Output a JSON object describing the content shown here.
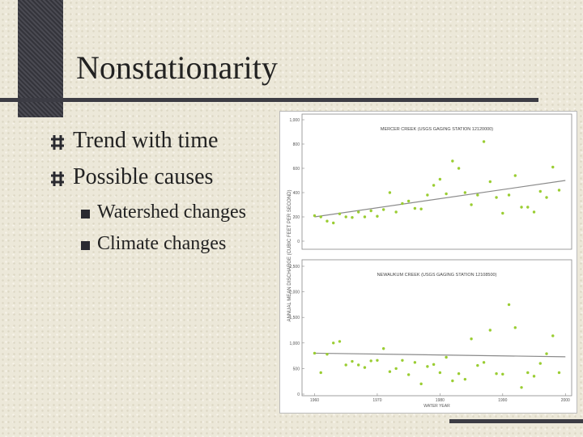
{
  "header": {
    "title": "Nonstationarity"
  },
  "bullets": [
    "Trend with time",
    "Possible causes"
  ],
  "sub_bullets": [
    "Watershed changes",
    "Climate changes"
  ],
  "chart_data": [
    {
      "type": "scatter",
      "title": "MERCER CREEK (USGS GAGING STATION 12120000)",
      "y_label": "ANNUAL MEAN DISCHARGE (CUBIC FEET PER SECOND)",
      "xlim": [
        1958,
        2001
      ],
      "ylim": [
        0,
        1000
      ],
      "yticks": [
        0,
        200,
        400,
        600,
        800,
        {
          "value": 1000,
          "label": "1,000"
        }
      ],
      "color": "#9acd32",
      "trend_color": "#8a8a8a",
      "x": [
        1960,
        1961,
        1962,
        1963,
        1964,
        1965,
        1966,
        1967,
        1968,
        1969,
        1970,
        1971,
        1972,
        1973,
        1974,
        1975,
        1976,
        1977,
        1978,
        1979,
        1980,
        1981,
        1982,
        1983,
        1984,
        1985,
        1986,
        1987,
        1988,
        1989,
        1990,
        1991,
        1992,
        1993,
        1994,
        1995,
        1996,
        1997,
        1998,
        1999
      ],
      "values": [
        210,
        200,
        165,
        150,
        225,
        200,
        195,
        240,
        200,
        250,
        205,
        260,
        400,
        240,
        310,
        330,
        270,
        265,
        380,
        460,
        510,
        390,
        660,
        600,
        400,
        300,
        380,
        820,
        490,
        360,
        230,
        380,
        540,
        280,
        280,
        240,
        410,
        360,
        610,
        420
      ],
      "trend": {
        "x": [
          1960,
          2000
        ],
        "values": [
          200,
          500
        ]
      }
    },
    {
      "type": "scatter",
      "title": "NEWAUKUM CREEK (USGS GAGING STATION 12108500)",
      "x_label": "WATER YEAR",
      "xlim": [
        1958,
        2001
      ],
      "ylim": [
        0,
        2500
      ],
      "xticks": [
        1960,
        1970,
        1980,
        1990,
        2000
      ],
      "yticks": [
        0,
        500,
        {
          "value": 1000,
          "label": "1,000"
        },
        {
          "value": 1500,
          "label": "1,500"
        },
        {
          "value": 2000,
          "label": "2,000"
        },
        {
          "value": 2500,
          "label": "2,500"
        }
      ],
      "color": "#9acd32",
      "trend_color": "#8a8a8a",
      "x": [
        1960,
        1961,
        1962,
        1963,
        1964,
        1965,
        1966,
        1967,
        1968,
        1969,
        1970,
        1971,
        1972,
        1973,
        1974,
        1975,
        1976,
        1977,
        1978,
        1979,
        1980,
        1981,
        1982,
        1983,
        1984,
        1985,
        1986,
        1987,
        1988,
        1989,
        1990,
        1991,
        1992,
        1993,
        1994,
        1995,
        1996,
        1997,
        1998,
        1999
      ],
      "values": [
        800,
        420,
        780,
        1000,
        1030,
        570,
        640,
        570,
        520,
        650,
        660,
        890,
        440,
        500,
        660,
        380,
        620,
        200,
        540,
        580,
        420,
        720,
        260,
        400,
        290,
        1080,
        560,
        620,
        1250,
        400,
        390,
        1750,
        1300,
        130,
        420,
        350,
        600,
        790,
        1140,
        420
      ],
      "trend": {
        "x": [
          1960,
          2000
        ],
        "values": [
          800,
          730
        ]
      }
    }
  ]
}
